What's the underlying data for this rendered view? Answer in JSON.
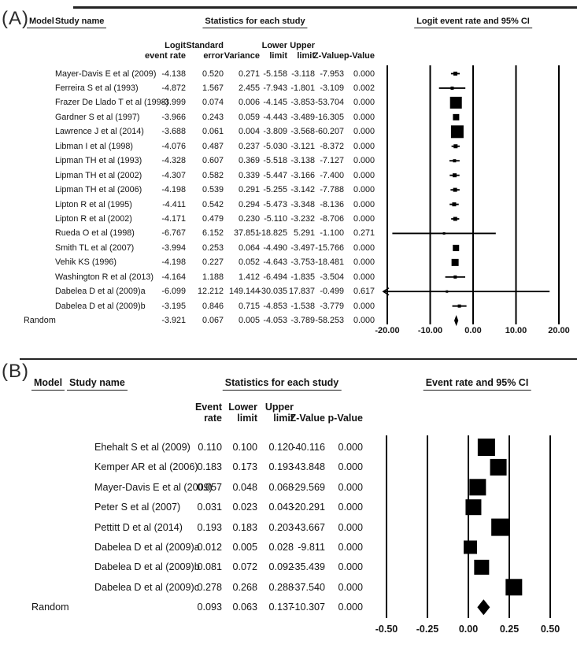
{
  "colors": {
    "ink": "#000000",
    "background": "#ffffff"
  },
  "chart_data": [
    {
      "type": "forest",
      "panel": "A",
      "panel_label": "(A)",
      "header": {
        "model": "Model",
        "study": "Study name",
        "stats": "Statistics for each study",
        "plot": "Logit event rate and 95% CI"
      },
      "columns": [
        [
          "Logit",
          "event rate"
        ],
        [
          "Standard",
          "error"
        ],
        [
          "Variance"
        ],
        [
          "Lower",
          "limit"
        ],
        [
          "Upper",
          "limit"
        ],
        [
          "Z-Value"
        ],
        [
          "p-Value"
        ]
      ],
      "axis": {
        "tick_values": [
          -20,
          -10,
          0,
          10,
          20
        ],
        "tick_labels": [
          "-20.00",
          "-10.00",
          "0.00",
          "10.00",
          "20.00"
        ]
      },
      "xlim": [
        -20,
        20
      ],
      "studies": [
        {
          "name": "Mayer-Davis E et al (2009)",
          "values": [
            "-4.138",
            "0.520",
            "0.271",
            "-5.158",
            "-3.118",
            "-7.953",
            "0.000"
          ],
          "point": -4.138,
          "lo": -5.158,
          "hi": -3.118,
          "marker_size": 5
        },
        {
          "name": "Ferreira S et al (1993)",
          "values": [
            "-4.872",
            "1.567",
            "2.455",
            "-7.943",
            "-1.801",
            "-3.109",
            "0.002"
          ],
          "point": -4.872,
          "lo": -7.943,
          "hi": -1.801,
          "marker_size": 4
        },
        {
          "name": "Frazer De Llado T et al (1998)",
          "values": [
            "-3.999",
            "0.074",
            "0.006",
            "-4.145",
            "-3.853",
            "-53.704",
            "0.000"
          ],
          "point": -3.999,
          "lo": -4.145,
          "hi": -3.853,
          "marker_size": 15
        },
        {
          "name": "Gardner S et al (1997)",
          "values": [
            "-3.966",
            "0.243",
            "0.059",
            "-4.443",
            "-3.489",
            "-16.305",
            "0.000"
          ],
          "point": -3.966,
          "lo": -4.443,
          "hi": -3.489,
          "marker_size": 8
        },
        {
          "name": "Lawrence J et al (2014)",
          "values": [
            "-3.688",
            "0.061",
            "0.004",
            "-3.809",
            "-3.568",
            "-60.207",
            "0.000"
          ],
          "point": -3.688,
          "lo": -3.809,
          "hi": -3.568,
          "marker_size": 16
        },
        {
          "name": "Libman I et al (1998)",
          "values": [
            "-4.076",
            "0.487",
            "0.237",
            "-5.030",
            "-3.121",
            "-8.372",
            "0.000"
          ],
          "point": -4.076,
          "lo": -5.03,
          "hi": -3.121,
          "marker_size": 5
        },
        {
          "name": "Lipman TH et al (1993)",
          "values": [
            "-4.328",
            "0.607",
            "0.369",
            "-5.518",
            "-3.138",
            "-7.127",
            "0.000"
          ],
          "point": -4.328,
          "lo": -5.518,
          "hi": -3.138,
          "marker_size": 4
        },
        {
          "name": "Lipman TH et al (2002)",
          "values": [
            "-4.307",
            "0.582",
            "0.339",
            "-5.447",
            "-3.166",
            "-7.400",
            "0.000"
          ],
          "point": -4.307,
          "lo": -5.447,
          "hi": -3.166,
          "marker_size": 5
        },
        {
          "name": "Lipman TH et al (2006)",
          "values": [
            "-4.198",
            "0.539",
            "0.291",
            "-5.255",
            "-3.142",
            "-7.788",
            "0.000"
          ],
          "point": -4.198,
          "lo": -5.255,
          "hi": -3.142,
          "marker_size": 5
        },
        {
          "name": "Lipton R et al (1995)",
          "values": [
            "-4.411",
            "0.542",
            "0.294",
            "-5.473",
            "-3.348",
            "-8.136",
            "0.000"
          ],
          "point": -4.411,
          "lo": -5.473,
          "hi": -3.348,
          "marker_size": 5
        },
        {
          "name": "Lipton R et al (2002)",
          "values": [
            "-4.171",
            "0.479",
            "0.230",
            "-5.110",
            "-3.232",
            "-8.706",
            "0.000"
          ],
          "point": -4.171,
          "lo": -5.11,
          "hi": -3.232,
          "marker_size": 5
        },
        {
          "name": "Rueda O et al (1998)",
          "values": [
            "-6.767",
            "6.152",
            "37.851",
            "-18.825",
            "5.291",
            "-1.100",
            "0.271"
          ],
          "point": -6.767,
          "lo": -18.825,
          "hi": 5.291,
          "marker_size": 3
        },
        {
          "name": "Smith TL et al (2007)",
          "values": [
            "-3.994",
            "0.253",
            "0.064",
            "-4.490",
            "-3.497",
            "-15.766",
            "0.000"
          ],
          "point": -3.994,
          "lo": -4.49,
          "hi": -3.497,
          "marker_size": 8
        },
        {
          "name": "Vehik KS (1996)",
          "values": [
            "-4.198",
            "0.227",
            "0.052",
            "-4.643",
            "-3.753",
            "-18.481",
            "0.000"
          ],
          "point": -4.198,
          "lo": -4.643,
          "hi": -3.753,
          "marker_size": 9
        },
        {
          "name": "Washington R et al (2013)",
          "values": [
            "-4.164",
            "1.188",
            "1.412",
            "-6.494",
            "-1.835",
            "-3.504",
            "0.000"
          ],
          "point": -4.164,
          "lo": -6.494,
          "hi": -1.835,
          "marker_size": 4
        },
        {
          "name": "Dabelea D et al (2009)a",
          "values": [
            "-6.099",
            "12.212",
            "149.144",
            "-30.035",
            "17.837",
            "-0.499",
            "0.617"
          ],
          "point": -6.099,
          "lo": -30.035,
          "hi": 17.837,
          "marker_size": 3
        },
        {
          "name": "Dabelea D et al (2009)b",
          "values": [
            "-3.195",
            "0.846",
            "0.715",
            "-4.853",
            "-1.538",
            "-3.779",
            "0.000"
          ],
          "point": -3.195,
          "lo": -4.853,
          "hi": -1.538,
          "marker_size": 4
        }
      ],
      "summary": {
        "name": "Random",
        "values": [
          "-3.921",
          "0.067",
          "0.005",
          "-4.053",
          "-3.789",
          "-58.253",
          "0.000"
        ],
        "point": -3.921,
        "lo": -4.053,
        "hi": -3.789
      }
    },
    {
      "type": "forest",
      "panel": "B",
      "panel_label": "(B)",
      "header": {
        "model": "Model",
        "study": "Study name",
        "stats": "Statistics for each study",
        "plot": "Event rate and 95% CI"
      },
      "columns": [
        [
          "Event",
          "rate"
        ],
        [
          "Lower",
          "limit"
        ],
        [
          "Upper",
          "limit"
        ],
        [
          "Z-Value"
        ],
        [
          "p-Value"
        ]
      ],
      "axis": {
        "tick_values": [
          -0.5,
          -0.25,
          0,
          0.25,
          0.5
        ],
        "tick_labels": [
          "-0.50",
          "-0.25",
          "0.00",
          "0.25",
          "0.50"
        ]
      },
      "xlim": [
        -0.5,
        0.5
      ],
      "studies": [
        {
          "name": "Ehehalt S et al (2009)",
          "values": [
            "0.110",
            "0.100",
            "0.120",
            "-40.116",
            "0.000"
          ],
          "point": 0.11,
          "lo": 0.1,
          "hi": 0.12,
          "marker_size": 22
        },
        {
          "name": "Kemper AR et al (2006)",
          "values": [
            "0.183",
            "0.173",
            "0.193",
            "-43.848",
            "0.000"
          ],
          "point": 0.183,
          "lo": 0.173,
          "hi": 0.193,
          "marker_size": 21
        },
        {
          "name": "Mayer-Davis E et al (2009)",
          "values": [
            "0.057",
            "0.048",
            "0.068",
            "-29.569",
            "0.000"
          ],
          "point": 0.057,
          "lo": 0.048,
          "hi": 0.068,
          "marker_size": 21
        },
        {
          "name": "Peter S et al (2007)",
          "values": [
            "0.031",
            "0.023",
            "0.043",
            "-20.291",
            "0.000"
          ],
          "point": 0.031,
          "lo": 0.023,
          "hi": 0.043,
          "marker_size": 20
        },
        {
          "name": "Pettitt D et al (2014)",
          "values": [
            "0.193",
            "0.183",
            "0.203",
            "-43.667",
            "0.000"
          ],
          "point": 0.193,
          "lo": 0.183,
          "hi": 0.203,
          "marker_size": 22
        },
        {
          "name": "Dabelea D et al (2009)a",
          "values": [
            "0.012",
            "0.005",
            "0.028",
            "-9.811",
            "0.000"
          ],
          "point": 0.012,
          "lo": 0.005,
          "hi": 0.028,
          "marker_size": 17
        },
        {
          "name": "Dabelea D et al (2009)b",
          "values": [
            "0.081",
            "0.072",
            "0.092",
            "-35.439",
            "0.000"
          ],
          "point": 0.081,
          "lo": 0.072,
          "hi": 0.092,
          "marker_size": 19
        },
        {
          "name": "Dabelea D et al (2009)c",
          "values": [
            "0.278",
            "0.268",
            "0.288",
            "-37.540",
            "0.000"
          ],
          "point": 0.278,
          "lo": 0.268,
          "hi": 0.288,
          "marker_size": 21
        }
      ],
      "summary": {
        "name": "Random",
        "values": [
          "0.093",
          "0.063",
          "0.137",
          "-10.307",
          "0.000"
        ],
        "point": 0.093,
        "lo": 0.063,
        "hi": 0.137
      }
    }
  ]
}
